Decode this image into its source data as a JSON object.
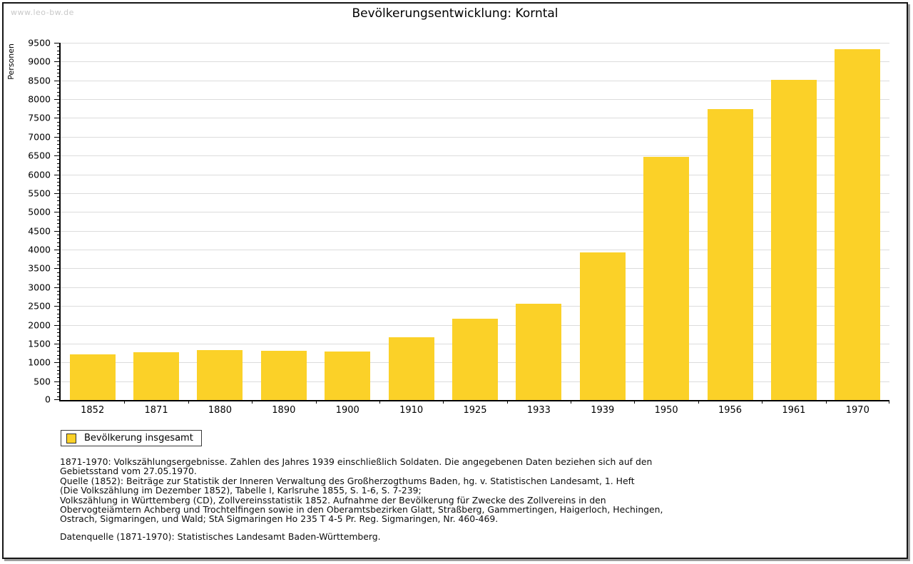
{
  "watermark": "www.leo-bw.de",
  "title": "Bevölkerungsentwicklung: Korntal",
  "legend": {
    "label": "Bevölkerung insgesamt"
  },
  "notes": "1871-1970: Volkszählungsergebnisse. Zahlen des Jahres 1939 einschließlich Soldaten. Die angegebenen Daten beziehen sich auf den\nGebietsstand vom 27.05.1970.\nQuelle (1852): Beiträge zur Statistik der Inneren Verwaltung des Großherzogthums Baden, hg. v. Statistischen Landesamt, 1. Heft\n(Die Volkszählung im Dezember 1852), Tabelle I, Karlsruhe 1855, S. 1-6, S. 7-239;\nVolkszählung in Württemberg (CD), Zollvereinsstatistik 1852. Aufnahme der Bevölkerung für Zwecke des Zollvereins in den\nObervogteiämtern Achberg und Trochtelfingen sowie in den Oberamtsbezirken Glatt, Straßberg, Gammertingen, Haigerloch, Hechingen,\nOstrach, Sigmaringen, und Wald; StA Sigmaringen Ho 235 T 4-5 Pr. Reg. Sigmaringen, Nr. 460-469.",
  "source": "Datenquelle (1871-1970): Statistisches Landesamt Baden-Württemberg.",
  "colors": {
    "bar": "#fbd128",
    "gridline": "#dcdcdc",
    "axis": "#000000",
    "watermark": "#c9c9c9"
  },
  "chart_data": {
    "type": "bar",
    "title": "Bevölkerungsentwicklung: Korntal",
    "categories": [
      "1852",
      "1871",
      "1880",
      "1890",
      "1900",
      "1910",
      "1925",
      "1933",
      "1939",
      "1950",
      "1956",
      "1961",
      "1970"
    ],
    "values": [
      1210,
      1270,
      1320,
      1310,
      1290,
      1670,
      2160,
      2560,
      3930,
      6460,
      7730,
      8520,
      9330
    ],
    "series": [
      {
        "name": "Bevölkerung insgesamt",
        "values": [
          1210,
          1270,
          1320,
          1310,
          1290,
          1670,
          2160,
          2560,
          3930,
          6460,
          7730,
          8520,
          9330
        ]
      }
    ],
    "xlabel": "",
    "ylabel": "Personen",
    "ylim": [
      0,
      9500
    ],
    "ytick_interval": 500,
    "ytick_minor_interval": 100,
    "grid": "horizontal",
    "legend_position": "bottom-left"
  }
}
